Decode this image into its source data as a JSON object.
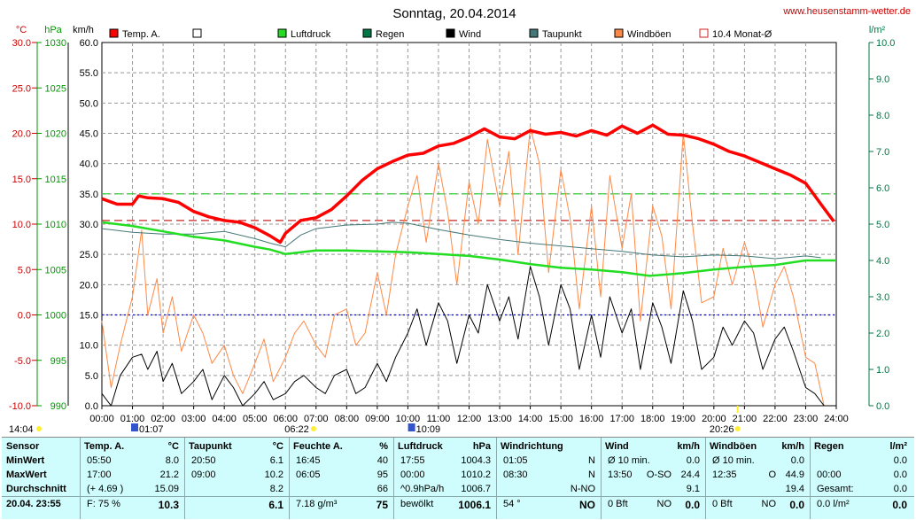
{
  "title": "Sonntag, 20.04.2014",
  "site": "www.heusenstamm-wetter.de",
  "axis_units": {
    "temp": "°C",
    "press": "hPa",
    "wind": "km/h",
    "rain": "l/m²"
  },
  "legend": [
    {
      "label": "Temp. A.",
      "color": "#ff0000",
      "style": "filled"
    },
    {
      "label": "",
      "color": "#ffffff",
      "style": "empty"
    },
    {
      "label": "Luftdruck",
      "color": "#22dd22",
      "style": "filled"
    },
    {
      "label": "Regen",
      "color": "#007744",
      "style": "filled"
    },
    {
      "label": "Wind",
      "color": "#000000",
      "style": "filled"
    },
    {
      "label": "Taupunkt",
      "color": "#447777",
      "style": "filled"
    },
    {
      "label": "Windböen",
      "color": "#ff8844",
      "style": "filled"
    },
    {
      "label": "10.4 Monat-Ø",
      "color": "#cc2222",
      "style": "outline"
    }
  ],
  "sun_labels": {
    "sunrise_left": "14:04",
    "moon1": "01:07",
    "sunrise": "06:22",
    "moon2": "10:09",
    "sunset": "20:26"
  },
  "chart_data": {
    "type": "line",
    "x_ticks": [
      "00:00",
      "01:00",
      "02:00",
      "03:00",
      "04:00",
      "05:00",
      "06:00",
      "07:00",
      "08:00",
      "09:00",
      "10:00",
      "11:00",
      "12:00",
      "13:00",
      "14:00",
      "15:00",
      "16:00",
      "17:00",
      "18:00",
      "19:00",
      "20:00",
      "21:00",
      "22:00",
      "23:00",
      "24:00"
    ],
    "x_range_hours": [
      0,
      24
    ],
    "temp_ticks": [
      "30.0",
      "25.0",
      "20.0",
      "15.0",
      "10.0",
      "5.0",
      "0.0",
      "-5.0",
      "-10.0"
    ],
    "temp_range": [
      -10,
      30
    ],
    "press_ticks": [
      "1030",
      "1025",
      "1020",
      "1015",
      "1010",
      "1005",
      "1000",
      "995",
      "990"
    ],
    "press_range": [
      990,
      1030
    ],
    "wind_ticks": [
      "60.0",
      "55.0",
      "50.0",
      "45.0",
      "40.0",
      "35.0",
      "30.0",
      "25.0",
      "20.0",
      "15.0",
      "10.0",
      "5.0",
      "0.0"
    ],
    "wind_range": [
      0,
      60
    ],
    "rain_ticks": [
      "10.0",
      "9.0",
      "8.0",
      "7.0",
      "6.0",
      "5.0",
      "4.0",
      "3.0",
      "2.0",
      "1.0",
      "0.0"
    ],
    "rain_range": [
      0,
      10
    ],
    "reference_lines": [
      {
        "name": "temp_month_avg",
        "axis": "temp",
        "value": 10.4,
        "color": "#cc2222"
      },
      {
        "name": "gust_line",
        "axis": "wind",
        "value": 35,
        "color": "#22cc22"
      },
      {
        "name": "zero_line",
        "axis": "temp",
        "value": 0.0,
        "color": "#0000cc"
      }
    ],
    "series": [
      {
        "name": "Temp. A.",
        "axis": "temp",
        "color": "#ff0000",
        "width": 3.5,
        "x": [
          0,
          0.5,
          1,
          1.2,
          1.5,
          2,
          2.5,
          3,
          3.5,
          4,
          4.5,
          5,
          5.5,
          5.83,
          6,
          6.5,
          7,
          7.5,
          8,
          8.5,
          9,
          9.5,
          10,
          10.5,
          11,
          11.5,
          12,
          12.5,
          13,
          13.5,
          14,
          14.5,
          15,
          15.5,
          16,
          16.5,
          17,
          17.5,
          18,
          18.5,
          19,
          19.5,
          20,
          20.5,
          21,
          21.5,
          22,
          22.5,
          23,
          23.5,
          23.92
        ],
        "y": [
          12.8,
          12.2,
          12.2,
          13.1,
          12.9,
          12.8,
          12.4,
          11.4,
          10.8,
          10.4,
          10.2,
          9.6,
          8.7,
          8.0,
          9.0,
          10.4,
          10.7,
          11.6,
          13.1,
          14.8,
          16.1,
          16.9,
          17.6,
          17.8,
          18.6,
          18.9,
          19.6,
          20.5,
          19.6,
          19.4,
          20.3,
          19.9,
          20.1,
          19.7,
          20.3,
          19.8,
          20.8,
          20.0,
          20.9,
          19.9,
          19.8,
          19.4,
          18.8,
          18.0,
          17.5,
          16.8,
          16.1,
          15.4,
          14.5,
          12.2,
          10.3
        ]
      },
      {
        "name": "Luftdruck",
        "axis": "press",
        "color": "#22dd22",
        "width": 2.5,
        "x": [
          0,
          1,
          2,
          3,
          4,
          5,
          5.5,
          6,
          6.5,
          7,
          8,
          9,
          10,
          11,
          12,
          13,
          14,
          15,
          16,
          17,
          17.9,
          19,
          20,
          21,
          22,
          23,
          24
        ],
        "y": [
          1010.2,
          1009.8,
          1009.2,
          1008.6,
          1008.2,
          1007.5,
          1007.2,
          1006.7,
          1006.9,
          1007.1,
          1007.1,
          1007.0,
          1006.9,
          1006.7,
          1006.5,
          1006.1,
          1005.6,
          1005.2,
          1005.0,
          1004.7,
          1004.3,
          1004.6,
          1005.0,
          1005.3,
          1005.5,
          1006.0,
          1006.0
        ]
      },
      {
        "name": "Taupunkt",
        "axis": "temp",
        "color": "#447777",
        "width": 1,
        "x": [
          0,
          1,
          2,
          3,
          4,
          5,
          5.5,
          6,
          6.5,
          7,
          8,
          9,
          9.5,
          10,
          11,
          12,
          13,
          14,
          15,
          16,
          17,
          18,
          19,
          20,
          21,
          22,
          23,
          23.5
        ],
        "y": [
          9.5,
          9.1,
          8.9,
          8.9,
          9.2,
          8.4,
          7.9,
          7.5,
          8.8,
          9.5,
          9.9,
          10.0,
          10.2,
          10.1,
          9.4,
          8.8,
          8.3,
          7.9,
          7.6,
          7.3,
          7.0,
          6.6,
          6.4,
          6.6,
          6.5,
          6.2,
          6.5,
          6.3
        ]
      },
      {
        "name": "Wind",
        "axis": "wind",
        "color": "#000000",
        "width": 1,
        "x": [
          0,
          0.3,
          0.6,
          1,
          1.3,
          1.5,
          1.8,
          2,
          2.3,
          2.6,
          3,
          3.3,
          3.6,
          4,
          4.3,
          4.6,
          5,
          5.3,
          5.6,
          6,
          6.3,
          6.6,
          7,
          7.3,
          7.6,
          8,
          8.3,
          8.6,
          9,
          9.3,
          9.6,
          10,
          10.3,
          10.6,
          11,
          11.3,
          11.6,
          12,
          12.3,
          12.6,
          13,
          13.3,
          13.6,
          14,
          14.3,
          14.6,
          15,
          15.3,
          15.6,
          16,
          16.3,
          16.6,
          17,
          17.3,
          17.6,
          18,
          18.3,
          18.6,
          19,
          19.3,
          19.6,
          20,
          20.3,
          20.6,
          21,
          21.3,
          21.6,
          22,
          22.3,
          22.6,
          23,
          23.3,
          23.6,
          23.9
        ],
        "y": [
          2,
          0,
          5,
          8,
          8.5,
          6,
          9,
          4,
          7,
          2,
          4,
          6,
          1,
          5,
          3,
          0,
          2,
          4,
          1,
          2,
          4,
          5,
          3,
          2,
          5,
          6,
          2,
          3,
          7,
          4,
          8,
          12,
          16,
          10,
          17,
          14,
          7,
          15,
          12,
          20,
          14,
          18,
          11,
          23,
          18,
          10,
          20,
          16,
          6,
          15,
          8,
          18,
          12,
          16,
          6,
          17,
          13,
          7,
          19,
          14,
          6,
          8,
          13,
          10,
          14,
          12,
          6,
          11,
          13,
          9,
          3,
          2,
          0,
          0
        ]
      },
      {
        "name": "Windböen",
        "axis": "wind",
        "color": "#ff8844",
        "width": 1,
        "x": [
          0,
          0.3,
          0.6,
          1,
          1.3,
          1.5,
          1.8,
          2,
          2.3,
          2.6,
          3,
          3.3,
          3.6,
          4,
          4.3,
          4.6,
          5,
          5.3,
          5.6,
          6,
          6.3,
          6.6,
          7,
          7.3,
          7.6,
          8,
          8.3,
          8.6,
          9,
          9.3,
          9.6,
          10,
          10.3,
          10.6,
          11,
          11.3,
          11.6,
          12,
          12.3,
          12.6,
          13,
          13.3,
          13.6,
          14,
          14.3,
          14.6,
          15,
          15.3,
          15.6,
          16,
          16.3,
          16.6,
          17,
          17.3,
          17.6,
          18,
          18.3,
          18.6,
          19,
          19.3,
          19.6,
          20,
          20.3,
          20.6,
          21,
          21.3,
          21.6,
          22,
          22.3,
          22.6,
          23,
          23.3,
          23.6,
          23.9
        ],
        "y": [
          14,
          3,
          10,
          18,
          29,
          15,
          21,
          12,
          18,
          9,
          15,
          12,
          7,
          10,
          5,
          2,
          7,
          11,
          4,
          8,
          12,
          14,
          10,
          8,
          15,
          16,
          10,
          12,
          22,
          15,
          25,
          33,
          38,
          27,
          40,
          32,
          20,
          37,
          30,
          44,
          33,
          42,
          25,
          46,
          40,
          22,
          39,
          31,
          16,
          33,
          18,
          38,
          26,
          35,
          14,
          33,
          28,
          16,
          45,
          30,
          17,
          18,
          26,
          20,
          27,
          22,
          13,
          20,
          23,
          18,
          8,
          7,
          0,
          0
        ]
      }
    ]
  },
  "stats": {
    "headers": {
      "sensor": "Sensor",
      "temp": "Temp. A.",
      "temp_u": "°C",
      "dew": "Taupunkt",
      "dew_u": "°C",
      "hum": "Feuchte A.",
      "hum_u": "%",
      "press": "Luftdruck",
      "press_u": "hPa",
      "dir": "Windrichtung",
      "wind": "Wind",
      "wind_u": "km/h",
      "gust": "Windböen",
      "gust_u": "km/h",
      "rain": "Regen",
      "rain_u": "l/m²"
    },
    "rows": [
      "MinWert",
      "MaxWert",
      "Durchschnitt",
      "20.04. 23:55"
    ],
    "temp": [
      [
        "05:50",
        "8.0"
      ],
      [
        "17:00",
        "21.2"
      ],
      [
        "(+ 4.69 )",
        "15.09"
      ],
      [
        "F: 75 %",
        "10.3"
      ]
    ],
    "dew": [
      [
        "20:50",
        "6.1"
      ],
      [
        "09:00",
        "10.2"
      ],
      [
        "",
        "8.2"
      ],
      [
        "",
        "6.1"
      ]
    ],
    "hum": [
      [
        "16:45",
        "40"
      ],
      [
        "06:05",
        "95"
      ],
      [
        "",
        "66"
      ],
      [
        "7.18 g/m³",
        "75"
      ]
    ],
    "press": [
      [
        "17:55",
        "1004.3"
      ],
      [
        "00:00",
        "1010.2"
      ],
      [
        "^0.9hPa/h",
        "1006.7"
      ],
      [
        "bewölkt",
        "1006.1"
      ]
    ],
    "dir": [
      [
        "01:05",
        "N"
      ],
      [
        "08:30",
        "N"
      ],
      [
        "",
        "N-NO"
      ],
      [
        "54 °",
        "NO"
      ]
    ],
    "wind": [
      [
        "Ø 10 min.",
        "",
        "0.0"
      ],
      [
        "13:50",
        "O-SO",
        "24.4"
      ],
      [
        "",
        "",
        "9.1"
      ],
      [
        "0 Bft",
        "NO",
        "0.0"
      ]
    ],
    "gust": [
      [
        "Ø 10 min.",
        "",
        "0.0"
      ],
      [
        "12:35",
        "O",
        "44.9"
      ],
      [
        "",
        "",
        "19.4"
      ],
      [
        "0 Bft",
        "NO",
        "0.0"
      ]
    ],
    "rain": [
      [
        "",
        "0.0"
      ],
      [
        "00:00",
        "0.0"
      ],
      [
        "Gesamt:",
        "0.0"
      ],
      [
        "0.0 l/m²",
        "0.0"
      ]
    ]
  }
}
